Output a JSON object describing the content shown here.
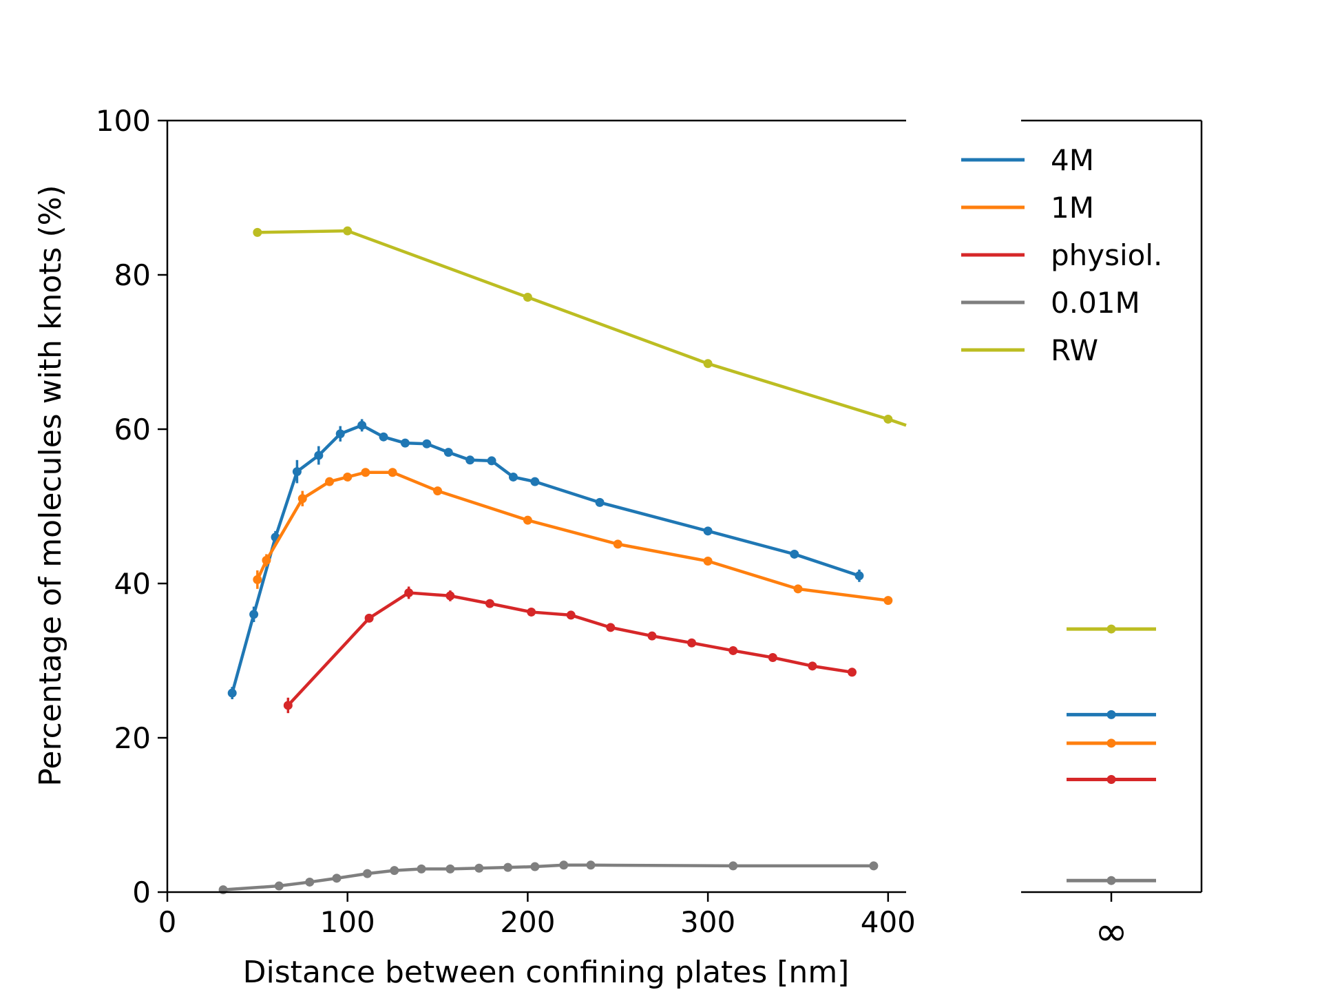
{
  "chart_data": {
    "type": "line",
    "xlabel": "Distance between confining plates [nm]",
    "ylabel": "Percentage of molecules with knots (%)",
    "xlim": [
      0,
      410
    ],
    "ylim": [
      0,
      100
    ],
    "xticks": [
      "0",
      "100",
      "200",
      "300",
      "400"
    ],
    "yticks": [
      "0",
      "20",
      "40",
      "60",
      "80",
      "100"
    ],
    "inf_tick": "∞",
    "legend_position": "top-right",
    "series": [
      {
        "name": "4M",
        "color": "#1f77b4",
        "x": [
          36,
          48,
          60,
          72,
          84,
          96,
          108,
          120,
          132,
          144,
          156,
          168,
          180,
          192,
          204,
          240,
          300,
          348,
          384
        ],
        "y": [
          25.8,
          36.0,
          46.0,
          54.5,
          56.6,
          59.4,
          60.5,
          59.0,
          58.2,
          58.1,
          57.0,
          56.0,
          55.9,
          53.8,
          53.2,
          50.5,
          46.8,
          43.8,
          41.0
        ],
        "err": [
          0.8,
          1.0,
          0.8,
          1.5,
          1.2,
          1.0,
          0.8,
          0.4,
          0.4,
          0.4,
          0.4,
          0.4,
          0.4,
          0.4,
          0.4,
          0.4,
          0.4,
          0.4,
          0.8
        ],
        "inf_value": 23.0
      },
      {
        "name": "1M",
        "color": "#ff7f0e",
        "x": [
          50,
          55,
          75,
          90,
          100,
          110,
          125,
          150,
          200,
          250,
          300,
          350,
          400
        ],
        "y": [
          40.5,
          43.0,
          51.0,
          53.2,
          53.8,
          54.4,
          54.4,
          52.0,
          48.2,
          45.1,
          42.9,
          39.3,
          37.8
        ],
        "err": [
          1.2,
          0.8,
          1.0,
          0.5,
          0.5,
          0.4,
          0.4,
          0.4,
          0.4,
          0.4,
          0.4,
          0.4,
          0.4
        ],
        "inf_value": 19.3
      },
      {
        "name": "physiol.",
        "color": "#d62728",
        "x": [
          67,
          112,
          134,
          157,
          179,
          202,
          224,
          246,
          269,
          291,
          314,
          336,
          358,
          380
        ],
        "y": [
          24.2,
          35.5,
          38.8,
          38.4,
          37.4,
          36.3,
          35.9,
          34.3,
          33.2,
          32.3,
          31.3,
          30.4,
          29.3,
          28.5
        ],
        "err": [
          1.0,
          0.4,
          0.8,
          0.7,
          0.4,
          0.4,
          0.4,
          0.4,
          0.4,
          0.4,
          0.4,
          0.4,
          0.4,
          0.4
        ],
        "inf_value": 14.6
      },
      {
        "name": "0.01M",
        "color": "#7f7f7f",
        "x": [
          31,
          62,
          79,
          94,
          111,
          126,
          141,
          157,
          173,
          189,
          204,
          220,
          235,
          314,
          392
        ],
        "y": [
          0.3,
          0.8,
          1.3,
          1.8,
          2.4,
          2.8,
          3.0,
          3.0,
          3.1,
          3.2,
          3.3,
          3.5,
          3.5,
          3.4,
          3.4
        ],
        "err": [],
        "inf_value": 1.5
      },
      {
        "name": "RW",
        "color": "#bcbd22",
        "x": [
          50,
          100,
          200,
          300,
          400,
          410
        ],
        "y": [
          85.5,
          85.7,
          77.1,
          68.5,
          61.3,
          60.5
        ],
        "err": [],
        "markers_n": 5,
        "inf_value": 34.1
      }
    ]
  }
}
